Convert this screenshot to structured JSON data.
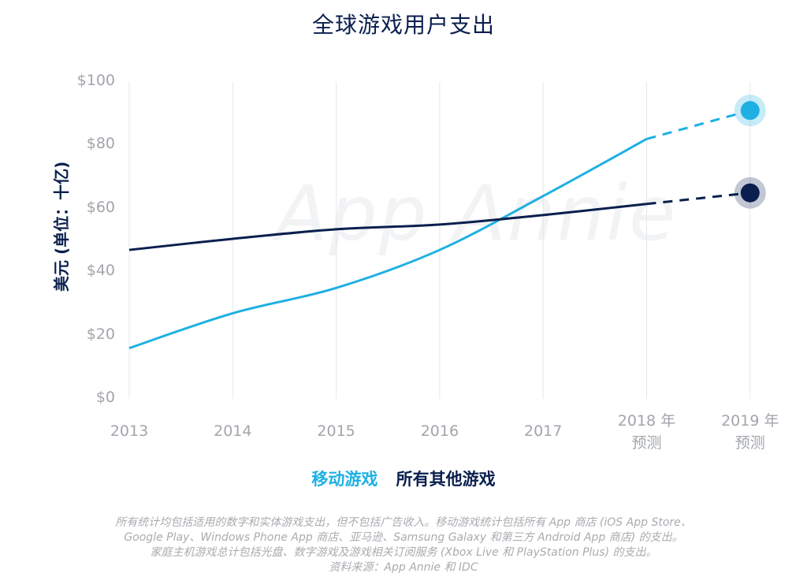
{
  "chart_data": {
    "type": "line",
    "title": "全球游戏用户支出",
    "ylabel": "美元 (单位：十亿)",
    "xlabel": "",
    "categories": [
      "2013",
      "2014",
      "2015",
      "2016",
      "2017",
      "2018 年\n预测",
      "2019 年\n预测"
    ],
    "ylim": [
      0,
      100
    ],
    "yticks": [
      "$0",
      "$20",
      "$40",
      "$60",
      "$80",
      "$100"
    ],
    "grid": "vertical",
    "series": [
      {
        "name": "移动游戏",
        "color": "#1eb0e2",
        "values": [
          16,
          27,
          35,
          47,
          64,
          82,
          91
        ],
        "forecast_from_index": 5
      },
      {
        "name": "所有其他游戏",
        "color": "#0a1f4e",
        "values": [
          47,
          50.5,
          53.5,
          55,
          58,
          61.5,
          65
        ],
        "forecast_from_index": 5
      }
    ]
  },
  "watermark": "App Annie",
  "footnote": {
    "line1": "所有统计均包括适用的数字和实体游戏支出，但不包括广告收入。移动游戏统计包括所有 App 商店 (iOS App Store、",
    "line2": "Google Play、Windows Phone App 商店、亚马逊、Samsung Galaxy 和第三方 Android App 商店) 的支出。",
    "line3": "家庭主机游戏总计包括光盘、数字游戏及游戏相关订阅服务 (Xbox Live 和 PlayStation Plus) 的支出。",
    "line4": "资料来源：App Annie 和 IDC"
  }
}
